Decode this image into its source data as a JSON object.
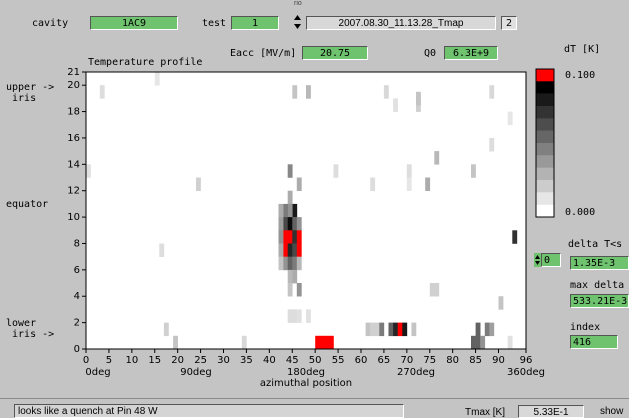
{
  "header": {
    "cavity_label": "cavity",
    "cavity_value": "1AC9",
    "test_label": "test",
    "test_value": "1",
    "file_value": "2007.08.30_11.13.28_Tmap",
    "file_count": "2",
    "small_top_label": "rio"
  },
  "plot": {
    "title": "Temperature profile",
    "eacc_label": "Eacc [MV/m]",
    "eacc_value": "20.75",
    "q0_label": "Q0",
    "q0_value": "6.3E+9",
    "left_labels": {
      "upper_iris": "upper\niris",
      "equator": "equator",
      "lower_iris": "lower\niris"
    },
    "x_sublabels": [
      "0deg",
      "90deg",
      "180deg",
      "270deg",
      "360deg"
    ],
    "x_axis_title": "azimuthal position"
  },
  "scale": {
    "title": "dT [K]",
    "max_label": "0.100",
    "min_label": "0.000",
    "colors": [
      "#ff0000",
      "#000000",
      "#1a1a1a",
      "#333333",
      "#4d4d4d",
      "#666666",
      "#808080",
      "#999999",
      "#b3b3b3",
      "#cccccc",
      "#e6e6e6",
      "#ffffff"
    ]
  },
  "side": {
    "delta_label": "delta T<s",
    "stepper_value": "0",
    "delta_value": "1.35E-3",
    "maxdelta_label": "max delta",
    "maxdelta_value": "533.21E-3",
    "index_label": "index",
    "index_value": "416"
  },
  "status": {
    "message": "looks like a quench at Pin 48 W",
    "tmax_label": "Tmax [K]",
    "tmax_value": "5.33E-1",
    "show_label": "show"
  },
  "chart_data": {
    "type": "heatmap",
    "xlabel": "azimuthal position",
    "x_range": [
      0,
      96
    ],
    "y_range": [
      0,
      21
    ],
    "x_ticks": [
      0,
      5,
      10,
      15,
      20,
      25,
      30,
      35,
      40,
      45,
      50,
      55,
      60,
      65,
      70,
      75,
      80,
      85,
      90,
      96
    ],
    "y_ticks": [
      0,
      2,
      4,
      6,
      8,
      10,
      12,
      14,
      16,
      18,
      20,
      21
    ],
    "value_unit": "dT [K]",
    "value_range": [
      0,
      0.1
    ],
    "cells": [
      [
        15,
        20,
        0.006
      ],
      [
        3,
        19,
        0.01
      ],
      [
        45,
        19,
        0.02
      ],
      [
        65,
        19,
        0.012
      ],
      [
        72,
        18,
        0.015
      ],
      [
        67,
        18,
        0.008
      ],
      [
        72,
        18.5,
        0.02
      ],
      [
        48,
        19,
        0.025
      ],
      [
        88,
        19,
        0.012
      ],
      [
        92,
        17,
        0.006
      ],
      [
        88,
        15,
        0.01
      ],
      [
        70,
        13,
        0.01
      ],
      [
        76,
        14,
        0.025
      ],
      [
        0,
        13,
        0.008
      ],
      [
        24,
        12,
        0.015
      ],
      [
        54,
        13,
        0.01
      ],
      [
        84,
        13,
        0.02
      ],
      [
        70,
        12,
        0.006
      ],
      [
        62,
        12,
        0.01
      ],
      [
        74,
        12,
        0.03
      ],
      [
        44,
        13,
        0.045
      ],
      [
        46,
        12,
        0.03
      ],
      [
        44,
        11,
        0.03
      ],
      [
        45,
        10,
        0.09
      ],
      [
        44,
        10,
        0.04
      ],
      [
        43,
        10,
        0.05
      ],
      [
        42,
        10,
        0.03
      ],
      [
        43,
        9,
        0.07
      ],
      [
        44,
        9,
        0.095
      ],
      [
        45,
        9,
        0.06
      ],
      [
        42,
        9,
        0.035
      ],
      [
        46,
        9,
        0.04
      ],
      [
        43,
        8,
        0.1
      ],
      [
        44,
        8,
        0.1
      ],
      [
        45,
        8,
        0.08
      ],
      [
        46,
        8,
        0.1
      ],
      [
        42,
        8,
        0.04
      ],
      [
        43,
        7,
        0.1
      ],
      [
        44,
        7,
        0.085
      ],
      [
        45,
        7,
        0.07
      ],
      [
        46,
        7,
        0.1
      ],
      [
        42,
        7,
        0.03
      ],
      [
        43,
        6,
        0.04
      ],
      [
        44,
        6,
        0.06
      ],
      [
        45,
        6,
        0.05
      ],
      [
        42,
        6,
        0.02
      ],
      [
        46,
        6,
        0.025
      ],
      [
        44,
        5,
        0.025
      ],
      [
        45,
        5,
        0.03
      ],
      [
        46,
        4,
        0.04
      ],
      [
        44,
        4,
        0.02
      ],
      [
        76,
        4,
        0.015
      ],
      [
        75,
        4,
        0.015
      ],
      [
        16,
        7,
        0.01
      ],
      [
        93,
        8,
        0.08
      ],
      [
        90,
        3,
        0.02
      ],
      [
        44,
        2,
        0.01
      ],
      [
        45,
        2,
        0.01
      ],
      [
        46,
        2,
        0.008
      ],
      [
        48,
        2,
        0.008
      ],
      [
        17,
        1,
        0.015
      ],
      [
        19,
        0,
        0.02
      ],
      [
        34,
        0,
        0.012
      ],
      [
        61,
        1,
        0.02
      ],
      [
        62,
        1,
        0.015
      ],
      [
        63,
        1,
        0.015
      ],
      [
        64,
        1,
        0.05
      ],
      [
        66,
        1,
        0.06
      ],
      [
        67,
        1,
        0.085
      ],
      [
        68,
        1,
        0.1
      ],
      [
        69,
        1,
        0.09
      ],
      [
        71,
        1,
        0.02
      ],
      [
        87,
        1,
        0.05
      ],
      [
        88,
        1,
        0.035
      ],
      [
        85,
        1,
        0.06
      ],
      [
        84,
        0,
        0.06
      ],
      [
        85,
        0,
        0.06
      ],
      [
        86,
        0,
        0.04
      ],
      [
        50,
        0,
        0.1
      ],
      [
        51,
        0,
        0.1
      ],
      [
        52,
        0,
        0.1
      ],
      [
        53,
        0,
        0.1
      ],
      [
        92,
        0,
        0.008
      ]
    ]
  }
}
